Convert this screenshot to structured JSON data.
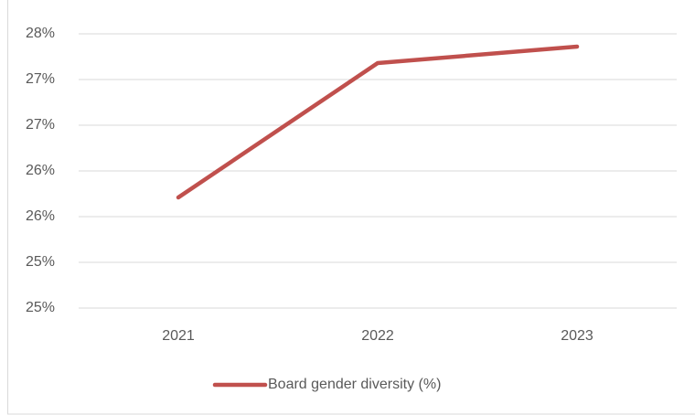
{
  "chart_data": {
    "type": "line",
    "categories": [
      "2021",
      "2022",
      "2023"
    ],
    "series": [
      {
        "name": "Board gender diversity (%)",
        "color": "#c0504d",
        "values": [
          25.71,
          27.18,
          27.36
        ]
      }
    ],
    "ylim": [
      24.5,
      27.5
    ],
    "yticks": [
      {
        "value": 24.5,
        "label": "25%"
      },
      {
        "value": 25,
        "label": "25%"
      },
      {
        "value": 25.5,
        "label": "26%"
      },
      {
        "value": 26,
        "label": "26%"
      },
      {
        "value": 26.5,
        "label": "27%"
      },
      {
        "value": 27,
        "label": "27%"
      },
      {
        "value": 27.5,
        "label": "28%"
      }
    ],
    "grid": true,
    "legend": "bottom"
  }
}
